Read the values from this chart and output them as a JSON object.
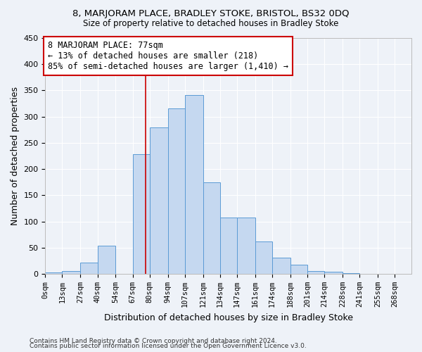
{
  "title1": "8, MARJORAM PLACE, BRADLEY STOKE, BRISTOL, BS32 0DQ",
  "title2": "Size of property relative to detached houses in Bradley Stoke",
  "xlabel": "Distribution of detached houses by size in Bradley Stoke",
  "ylabel": "Number of detached properties",
  "bin_labels": [
    "0sqm",
    "13sqm",
    "27sqm",
    "40sqm",
    "54sqm",
    "67sqm",
    "80sqm",
    "94sqm",
    "107sqm",
    "121sqm",
    "134sqm",
    "147sqm",
    "161sqm",
    "174sqm",
    "188sqm",
    "201sqm",
    "214sqm",
    "228sqm",
    "241sqm",
    "255sqm",
    "268sqm"
  ],
  "bin_edges": [
    0,
    13,
    27,
    40,
    54,
    67,
    80,
    94,
    107,
    121,
    134,
    147,
    161,
    174,
    188,
    201,
    214,
    228,
    241,
    255,
    268
  ],
  "bar_heights": [
    3,
    5,
    22,
    53,
    0,
    228,
    280,
    316,
    341,
    175,
    108,
    108,
    62,
    31,
    18,
    5,
    4,
    1,
    0,
    0
  ],
  "bar_color": "#c5d8f0",
  "bar_edge_color": "#5b9bd5",
  "vline_x": 77,
  "vline_color": "#cc0000",
  "annotation_text": "8 MARJORAM PLACE: 77sqm\n← 13% of detached houses are smaller (218)\n85% of semi-detached houses are larger (1,410) →",
  "annotation_box_color": "#ffffff",
  "annotation_box_edge": "#cc0000",
  "ylim": [
    0,
    450
  ],
  "yticks": [
    0,
    50,
    100,
    150,
    200,
    250,
    300,
    350,
    400,
    450
  ],
  "footnote1": "Contains HM Land Registry data © Crown copyright and database right 2024.",
  "footnote2": "Contains public sector information licensed under the Open Government Licence v3.0.",
  "background_color": "#eef2f8",
  "grid_color": "#ffffff"
}
